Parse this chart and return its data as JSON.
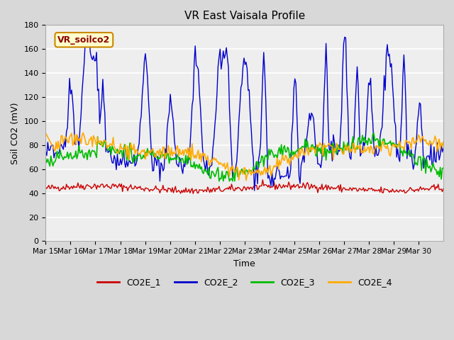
{
  "title": "VR East Vaisala Profile",
  "xlabel": "Time",
  "ylabel": "Soil CO2 (mV)",
  "annotation": "VR_soilco2",
  "ylim": [
    0,
    180
  ],
  "yticks": [
    0,
    20,
    40,
    60,
    80,
    100,
    120,
    140,
    160,
    180
  ],
  "x_tick_positions": [
    0,
    1,
    2,
    3,
    4,
    5,
    6,
    7,
    8,
    9,
    10,
    11,
    12,
    13,
    14,
    15
  ],
  "x_labels": [
    "Mar 15",
    "Mar 16",
    "Mar 17",
    "Mar 18",
    "Mar 19",
    "Mar 20",
    "Mar 21",
    "Mar 22",
    "Mar 23",
    "Mar 24",
    "Mar 25",
    "Mar 26",
    "Mar 27",
    "Mar 28",
    "Mar 29",
    "Mar 30"
  ],
  "colors": {
    "CO2E_1": "#cc0000",
    "CO2E_2": "#0000cc",
    "CO2E_3": "#00bb00",
    "CO2E_4": "#ffaa00"
  },
  "bg_color": "#d8d8d8",
  "plot_bg": "#eeeeee",
  "legend_entries": [
    "CO2E_1",
    "CO2E_2",
    "CO2E_3",
    "CO2E_4"
  ]
}
